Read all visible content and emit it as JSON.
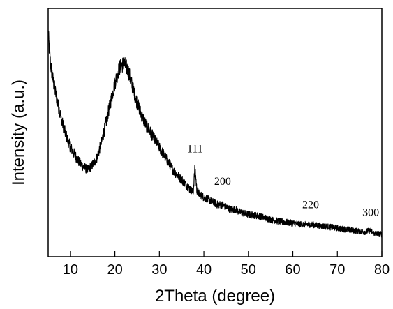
{
  "chart_data": {
    "type": "line",
    "title": "",
    "xlabel": "2Theta (degree)",
    "ylabel": "Intensity (a.u.)",
    "xlim": [
      5,
      80
    ],
    "ylim": [
      0,
      100
    ],
    "x_ticks": [
      10,
      20,
      30,
      40,
      50,
      60,
      70,
      80
    ],
    "y_ticks_visible": false,
    "grid": false,
    "legend": "none",
    "colors": {
      "line": "#000000",
      "axis": "#000000",
      "background": "#ffffff"
    },
    "series": [
      {
        "x": [
          5,
          5.5,
          6,
          7,
          8,
          9,
          10,
          11,
          12,
          13,
          14,
          15,
          16,
          17,
          18,
          19,
          20,
          21,
          22,
          23,
          24,
          25,
          26,
          27,
          28,
          29,
          30,
          31,
          32,
          33,
          34,
          35,
          36,
          37,
          37.6,
          38,
          38.4,
          39,
          40,
          41,
          42,
          43,
          44,
          45,
          46,
          47,
          48,
          50,
          52,
          54,
          56,
          58,
          60,
          62,
          64,
          66,
          68,
          70,
          72,
          74,
          76,
          77.5,
          78,
          80
        ],
        "y": [
          90,
          78,
          72,
          63,
          55,
          49,
          44,
          41,
          38,
          36,
          35,
          37,
          40,
          46,
          54,
          62,
          70,
          76,
          78,
          75,
          68,
          62,
          57,
          53,
          50,
          47,
          44,
          41,
          38,
          35,
          33,
          31,
          29,
          27,
          26,
          36,
          27,
          25,
          24,
          23,
          22,
          21,
          21,
          20,
          19,
          19,
          18,
          17,
          16.5,
          15.5,
          14.5,
          14,
          13.5,
          13,
          13,
          12.5,
          12,
          11.5,
          11,
          10.5,
          10,
          10.5,
          9.5,
          9
        ]
      }
    ],
    "annotations": [
      {
        "text": "111",
        "x": 38,
        "y": 42
      },
      {
        "text": "200",
        "x": 44.2,
        "y": 29
      },
      {
        "text": "220",
        "x": 64,
        "y": 19.5
      },
      {
        "text": "300",
        "x": 77.5,
        "y": 16.5
      }
    ]
  }
}
